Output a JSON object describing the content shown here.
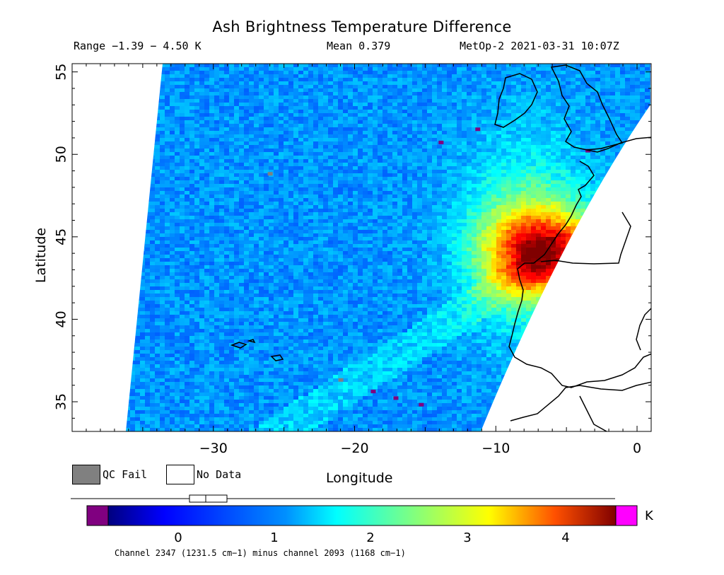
{
  "title": "Ash Brightness Temperature Difference",
  "header": {
    "range": "Range −1.39 − 4.50 K",
    "mean": "Mean 0.379",
    "satellite": "MetOp-2 2021-03-31 10:07Z"
  },
  "axes": {
    "ylabel": "Latitude",
    "xlabel": "Longitude",
    "lat_ticks": [
      "55",
      "50",
      "45",
      "40",
      "35"
    ],
    "lon_ticks": [
      "−30",
      "−20",
      "−10",
      "0"
    ]
  },
  "legend": {
    "qc_fail": "QC Fail",
    "no_data": "No Data",
    "qc_color": "#808080"
  },
  "colorbar": {
    "unit": "K",
    "ticks": [
      "0",
      "1",
      "2",
      "3",
      "4"
    ],
    "caption": "Channel 2347 (1231.5 cm−1) minus channel 2093 (1168 cm−1)",
    "under_color": "#800080",
    "over_color": "#ff00ff"
  },
  "map_extent": {
    "lon_range": [
      -40,
      1
    ],
    "lat_range": [
      33.2,
      55.5
    ]
  }
}
